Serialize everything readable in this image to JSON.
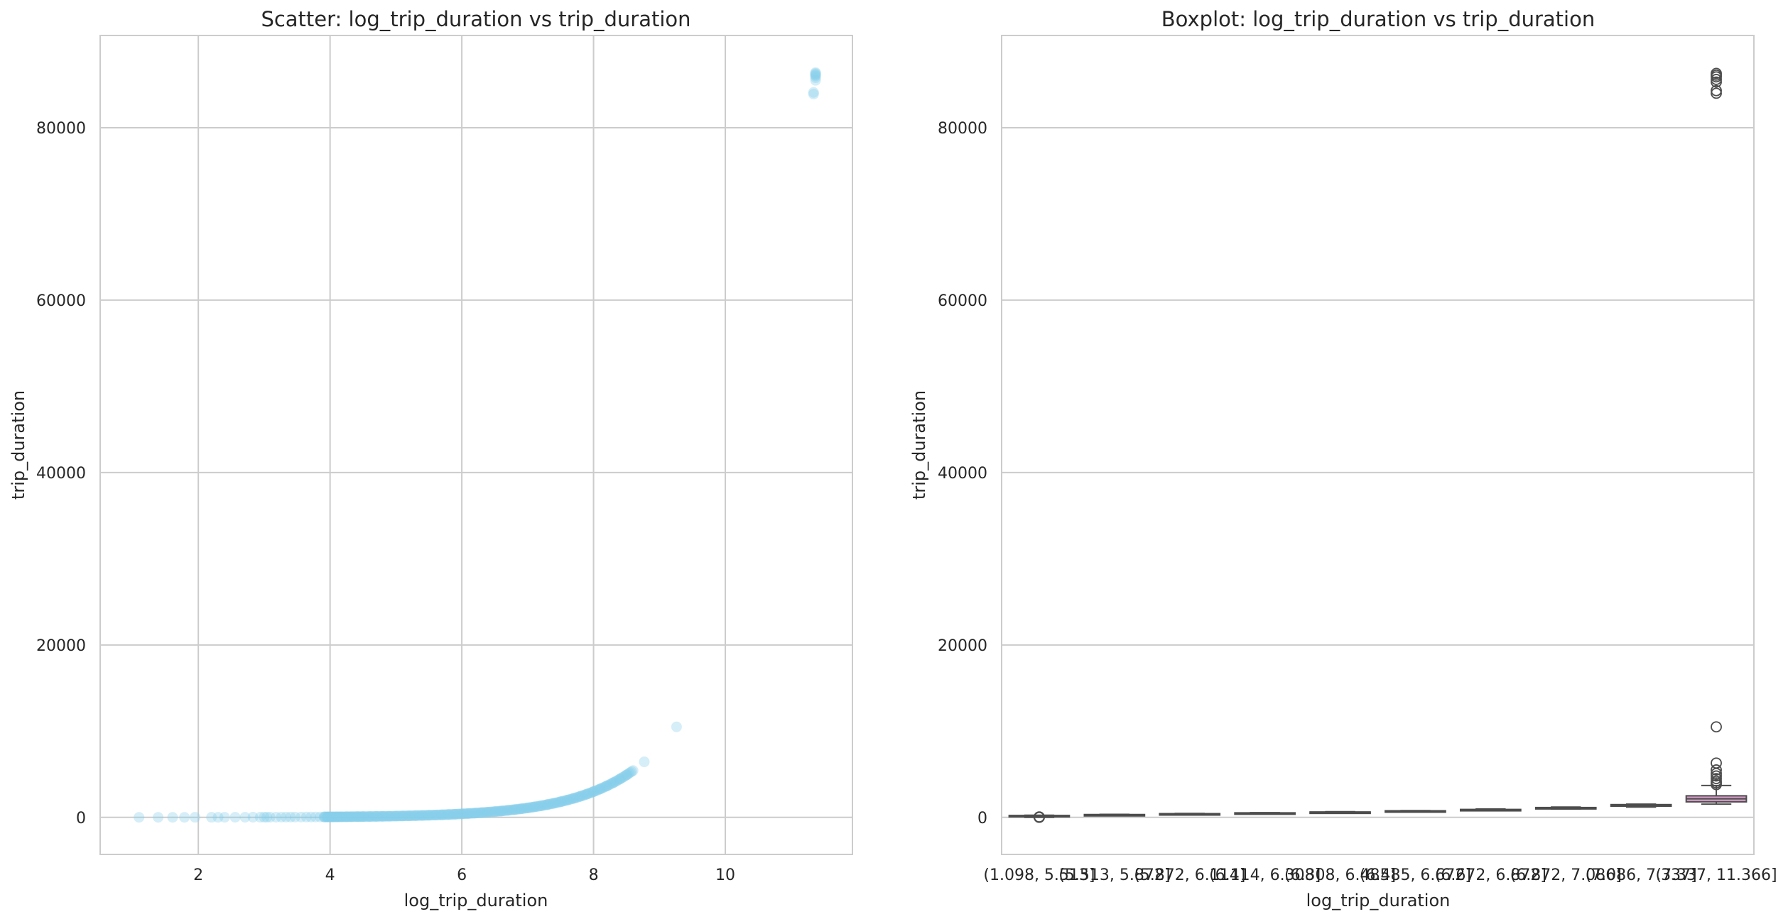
{
  "chart_data": [
    {
      "type": "scatter",
      "title": "Scatter: log_trip_duration vs trip_duration",
      "xlabel": "log_trip_duration",
      "ylabel": "trip_duration",
      "xlim": [
        0.51,
        11.93
      ],
      "ylim": [
        -4300,
        90700
      ],
      "xticks": [
        2,
        4,
        6,
        8,
        10
      ],
      "yticks": [
        0,
        20000,
        40000,
        60000,
        80000
      ],
      "grid": true,
      "color": "#87ceeb",
      "alpha": 0.35,
      "x": [
        1.1,
        1.39,
        1.61,
        1.79,
        1.95,
        2.2,
        2.3,
        2.4,
        2.56,
        2.71,
        2.83,
        2.94,
        3.0,
        3.04,
        3.09,
        3.18,
        3.26,
        3.33,
        3.4,
        3.47,
        3.56,
        3.64,
        3.71,
        3.78,
        3.85,
        3.91,
        3.97,
        4.03,
        4.1,
        4.17,
        4.25,
        4.33,
        4.42,
        4.5,
        4.6,
        4.7,
        4.8,
        4.9,
        5.0,
        5.1,
        5.2,
        5.3,
        5.4,
        5.5,
        5.6,
        5.7,
        5.8,
        5.9,
        6.0,
        6.1,
        6.2,
        6.3,
        6.4,
        6.5,
        6.6,
        6.7,
        6.8,
        6.9,
        7.0,
        7.1,
        7.2,
        7.3,
        7.4,
        7.5,
        7.6,
        7.7,
        7.8,
        7.9,
        8.0,
        8.1,
        8.2,
        8.3,
        8.4,
        8.5,
        8.6,
        8.77,
        9.26,
        11.37,
        11.37,
        11.37,
        11.37,
        11.37,
        11.37,
        11.37,
        11.34,
        11.34
      ],
      "y": [
        3,
        4,
        5,
        6,
        7,
        9,
        10,
        11,
        13,
        15,
        17,
        19,
        20,
        21,
        22,
        24,
        26,
        28,
        30,
        32,
        35,
        38,
        41,
        44,
        47,
        50,
        53,
        56,
        60,
        65,
        70,
        76,
        83,
        90,
        99,
        110,
        122,
        134,
        148,
        164,
        181,
        200,
        221,
        245,
        270,
        299,
        330,
        365,
        403,
        446,
        493,
        545,
        602,
        665,
        735,
        812,
        898,
        992,
        1097,
        1212,
        1339,
        1480,
        1636,
        1808,
        1998,
        2208,
        2441,
        2697,
        2981,
        3294,
        3641,
        4024,
        4447,
        4915,
        5432,
        6440,
        10500,
        85500,
        85800,
        86000,
        86200,
        86300,
        86400,
        86100,
        84100,
        83900
      ]
    },
    {
      "type": "box",
      "title": "Boxplot: log_trip_duration vs trip_duration",
      "xlabel": "log_trip_duration",
      "ylabel": "trip_duration",
      "ylim": [
        -4300,
        90700
      ],
      "yticks": [
        0,
        20000,
        40000,
        60000,
        80000
      ],
      "grid": true,
      "categories": [
        "(1.098, 5.513]",
        "(5.513, 5.872]",
        "(5.872, 6.114]",
        "(6.114, 6.308]",
        "(6.308, 6.485]",
        "(6.485, 6.672]",
        "(6.672, 6.872]",
        "(6.872, 7.086]",
        "(7.086, 7.337]",
        "(7.337, 11.366]"
      ],
      "colors": [
        "#9e9ac8",
        "#a6a2cc",
        "#aaa7d0",
        "#afa7cf",
        "#b4a7ce",
        "#bfa3cb",
        "#c4a2ca",
        "#caa0c9",
        "#cf9ec7",
        "#d39bc6"
      ],
      "boxes": [
        {
          "whislo": 3,
          "q1": 120,
          "med": 180,
          "q3": 220,
          "whishi": 248,
          "fliers": [
            5,
            10,
            20,
            35,
            50
          ]
        },
        {
          "whislo": 248,
          "q1": 275,
          "med": 300,
          "q3": 330,
          "whishi": 355,
          "fliers": []
        },
        {
          "whislo": 355,
          "q1": 385,
          "med": 410,
          "q3": 430,
          "whishi": 452,
          "fliers": []
        },
        {
          "whislo": 452,
          "q1": 480,
          "med": 500,
          "q3": 525,
          "whishi": 549,
          "fliers": []
        },
        {
          "whislo": 549,
          "q1": 580,
          "med": 610,
          "q3": 625,
          "whishi": 656,
          "fliers": []
        },
        {
          "whislo": 656,
          "q1": 700,
          "med": 740,
          "q3": 765,
          "whishi": 788,
          "fliers": []
        },
        {
          "whislo": 788,
          "q1": 830,
          "med": 880,
          "q3": 920,
          "whishi": 966,
          "fliers": []
        },
        {
          "whislo": 966,
          "q1": 1030,
          "med": 1080,
          "q3": 1140,
          "whishi": 1194,
          "fliers": []
        },
        {
          "whislo": 1194,
          "q1": 1290,
          "med": 1400,
          "q3": 1480,
          "whishi": 1537,
          "fliers": []
        },
        {
          "whislo": 1537,
          "q1": 1800,
          "med": 2150,
          "q3": 2500,
          "whishi": 3700,
          "fliers": [
            3800,
            4000,
            4200,
            4500,
            4800,
            5100,
            5500,
            6300,
            10500,
            84000,
            84300,
            85300,
            85600,
            85900,
            86100,
            86300
          ]
        }
      ]
    }
  ]
}
